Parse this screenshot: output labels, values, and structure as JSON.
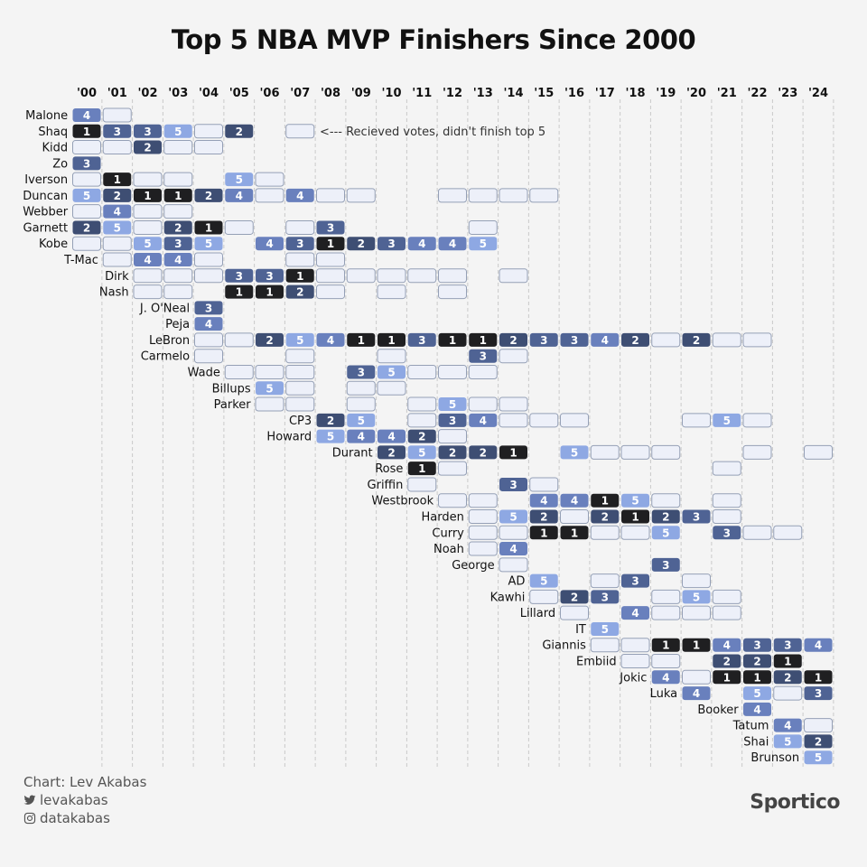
{
  "chart_data": {
    "type": "table",
    "title": "Top 5 NBA MVP Finishers Since 2000",
    "years": [
      "'00",
      "'01",
      "'02",
      "'03",
      "'04",
      "'05",
      "'06",
      "'07",
      "'08",
      "'09",
      "'10",
      "'11",
      "'12",
      "'13",
      "'14",
      "'15",
      "'16",
      "'17",
      "'18",
      "'19",
      "'20",
      "'21",
      "'22",
      "'23",
      "'24"
    ],
    "annotation": "<--- Recieved votes, didn't finish top 5",
    "colors": {
      "1": "#1f1f21",
      "2": "#3e4e73",
      "3": "#4f6394",
      "4": "#6980bd",
      "5": "#8ea8e3",
      "0": "#edf0f9",
      "stroke": "#95a0b6"
    },
    "players": [
      {
        "name": "Malone",
        "cells": [
          [
            0,
            4
          ],
          [
            1,
            0
          ]
        ]
      },
      {
        "name": "Shaq",
        "cells": [
          [
            0,
            1
          ],
          [
            1,
            3
          ],
          [
            2,
            3
          ],
          [
            3,
            5
          ],
          [
            4,
            0
          ],
          [
            5,
            2
          ],
          [
            7,
            0
          ]
        ]
      },
      {
        "name": "Kidd",
        "cells": [
          [
            0,
            0
          ],
          [
            1,
            0
          ],
          [
            2,
            2
          ],
          [
            3,
            0
          ],
          [
            4,
            0
          ]
        ]
      },
      {
        "name": "Zo",
        "cells": [
          [
            0,
            3
          ]
        ]
      },
      {
        "name": "Iverson",
        "cells": [
          [
            0,
            0
          ],
          [
            1,
            1
          ],
          [
            2,
            0
          ],
          [
            3,
            0
          ],
          [
            5,
            5
          ],
          [
            6,
            0
          ]
        ]
      },
      {
        "name": "Duncan",
        "cells": [
          [
            0,
            5
          ],
          [
            1,
            2
          ],
          [
            2,
            1
          ],
          [
            3,
            1
          ],
          [
            4,
            2
          ],
          [
            5,
            4
          ],
          [
            6,
            0
          ],
          [
            7,
            4
          ],
          [
            8,
            0
          ],
          [
            9,
            0
          ],
          [
            12,
            0
          ],
          [
            13,
            0
          ],
          [
            14,
            0
          ],
          [
            15,
            0
          ]
        ]
      },
      {
        "name": "Webber",
        "cells": [
          [
            0,
            0
          ],
          [
            1,
            4
          ],
          [
            2,
            0
          ],
          [
            3,
            0
          ]
        ]
      },
      {
        "name": "Garnett",
        "cells": [
          [
            0,
            2
          ],
          [
            1,
            5
          ],
          [
            2,
            0
          ],
          [
            3,
            2
          ],
          [
            4,
            1
          ],
          [
            5,
            0
          ],
          [
            7,
            0
          ],
          [
            8,
            3
          ],
          [
            13,
            0
          ]
        ]
      },
      {
        "name": "Kobe",
        "cells": [
          [
            0,
            0
          ],
          [
            1,
            0
          ],
          [
            2,
            5
          ],
          [
            3,
            3
          ],
          [
            4,
            5
          ],
          [
            6,
            4
          ],
          [
            7,
            3
          ],
          [
            8,
            1
          ],
          [
            9,
            2
          ],
          [
            10,
            3
          ],
          [
            11,
            4
          ],
          [
            12,
            4
          ],
          [
            13,
            5
          ]
        ]
      },
      {
        "name": "T-Mac",
        "cells": [
          [
            1,
            0
          ],
          [
            2,
            4
          ],
          [
            3,
            4
          ],
          [
            4,
            0
          ],
          [
            7,
            0
          ],
          [
            8,
            0
          ]
        ]
      },
      {
        "name": "Dirk",
        "cells": [
          [
            2,
            0
          ],
          [
            3,
            0
          ],
          [
            4,
            0
          ],
          [
            5,
            3
          ],
          [
            6,
            3
          ],
          [
            7,
            1
          ],
          [
            8,
            0
          ],
          [
            9,
            0
          ],
          [
            10,
            0
          ],
          [
            11,
            0
          ],
          [
            12,
            0
          ],
          [
            14,
            0
          ]
        ]
      },
      {
        "name": "Nash",
        "cells": [
          [
            2,
            0
          ],
          [
            3,
            0
          ],
          [
            5,
            1
          ],
          [
            6,
            1
          ],
          [
            7,
            2
          ],
          [
            8,
            0
          ],
          [
            10,
            0
          ],
          [
            12,
            0
          ]
        ]
      },
      {
        "name": "J. O'Neal",
        "cells": [
          [
            4,
            3
          ]
        ]
      },
      {
        "name": "Peja",
        "cells": [
          [
            4,
            4
          ]
        ]
      },
      {
        "name": "LeBron",
        "cells": [
          [
            4,
            0
          ],
          [
            5,
            0
          ],
          [
            6,
            2
          ],
          [
            7,
            5
          ],
          [
            8,
            4
          ],
          [
            9,
            1
          ],
          [
            10,
            1
          ],
          [
            11,
            3
          ],
          [
            12,
            1
          ],
          [
            13,
            1
          ],
          [
            14,
            2
          ],
          [
            15,
            3
          ],
          [
            16,
            3
          ],
          [
            17,
            4
          ],
          [
            18,
            2
          ],
          [
            19,
            0
          ],
          [
            20,
            2
          ],
          [
            21,
            0
          ],
          [
            22,
            0
          ]
        ]
      },
      {
        "name": "Carmelo",
        "cells": [
          [
            4,
            0
          ],
          [
            7,
            0
          ],
          [
            10,
            0
          ],
          [
            13,
            3
          ],
          [
            14,
            0
          ]
        ]
      },
      {
        "name": "Wade",
        "cells": [
          [
            5,
            0
          ],
          [
            6,
            0
          ],
          [
            7,
            0
          ],
          [
            9,
            3
          ],
          [
            10,
            5
          ],
          [
            11,
            0
          ],
          [
            12,
            0
          ],
          [
            13,
            0
          ]
        ]
      },
      {
        "name": "Billups",
        "cells": [
          [
            6,
            5
          ],
          [
            7,
            0
          ],
          [
            9,
            0
          ],
          [
            10,
            0
          ]
        ]
      },
      {
        "name": "Parker",
        "cells": [
          [
            6,
            0
          ],
          [
            7,
            0
          ],
          [
            9,
            0
          ],
          [
            11,
            0
          ],
          [
            12,
            5
          ],
          [
            13,
            0
          ],
          [
            14,
            0
          ]
        ]
      },
      {
        "name": "CP3",
        "cells": [
          [
            8,
            2
          ],
          [
            9,
            5
          ],
          [
            11,
            0
          ],
          [
            12,
            3
          ],
          [
            13,
            4
          ],
          [
            14,
            0
          ],
          [
            15,
            0
          ],
          [
            16,
            0
          ],
          [
            20,
            0
          ],
          [
            21,
            5
          ],
          [
            22,
            0
          ]
        ]
      },
      {
        "name": "Howard",
        "cells": [
          [
            8,
            5
          ],
          [
            9,
            4
          ],
          [
            10,
            4
          ],
          [
            11,
            2
          ],
          [
            12,
            0
          ]
        ]
      },
      {
        "name": "Durant",
        "cells": [
          [
            10,
            2
          ],
          [
            11,
            5
          ],
          [
            12,
            2
          ],
          [
            13,
            2
          ],
          [
            14,
            1
          ],
          [
            16,
            5
          ],
          [
            17,
            0
          ],
          [
            18,
            0
          ],
          [
            19,
            0
          ],
          [
            22,
            0
          ],
          [
            24,
            0
          ]
        ]
      },
      {
        "name": "Rose",
        "cells": [
          [
            11,
            1
          ],
          [
            12,
            0
          ],
          [
            21,
            0
          ]
        ]
      },
      {
        "name": "Griffin",
        "cells": [
          [
            11,
            0
          ],
          [
            14,
            3
          ],
          [
            15,
            0
          ]
        ]
      },
      {
        "name": "Westbrook",
        "cells": [
          [
            12,
            0
          ],
          [
            13,
            0
          ],
          [
            15,
            4
          ],
          [
            16,
            4
          ],
          [
            17,
            1
          ],
          [
            18,
            5
          ],
          [
            19,
            0
          ],
          [
            21,
            0
          ]
        ]
      },
      {
        "name": "Harden",
        "cells": [
          [
            13,
            0
          ],
          [
            14,
            5
          ],
          [
            15,
            2
          ],
          [
            16,
            0
          ],
          [
            17,
            2
          ],
          [
            18,
            1
          ],
          [
            19,
            2
          ],
          [
            20,
            3
          ],
          [
            21,
            0
          ]
        ]
      },
      {
        "name": "Curry",
        "cells": [
          [
            13,
            0
          ],
          [
            14,
            0
          ],
          [
            15,
            1
          ],
          [
            16,
            1
          ],
          [
            17,
            0
          ],
          [
            18,
            0
          ],
          [
            19,
            5
          ],
          [
            21,
            3
          ],
          [
            22,
            0
          ],
          [
            23,
            0
          ]
        ]
      },
      {
        "name": "Noah",
        "cells": [
          [
            13,
            0
          ],
          [
            14,
            4
          ]
        ]
      },
      {
        "name": "George",
        "cells": [
          [
            14,
            0
          ],
          [
            19,
            3
          ]
        ]
      },
      {
        "name": "AD",
        "cells": [
          [
            15,
            5
          ],
          [
            17,
            0
          ],
          [
            18,
            3
          ],
          [
            20,
            0
          ]
        ]
      },
      {
        "name": "Kawhi",
        "cells": [
          [
            15,
            0
          ],
          [
            16,
            2
          ],
          [
            17,
            3
          ],
          [
            19,
            0
          ],
          [
            20,
            5
          ],
          [
            21,
            0
          ]
        ]
      },
      {
        "name": "Lillard",
        "cells": [
          [
            16,
            0
          ],
          [
            18,
            4
          ],
          [
            19,
            0
          ],
          [
            20,
            0
          ],
          [
            21,
            0
          ]
        ]
      },
      {
        "name": "IT",
        "cells": [
          [
            17,
            5
          ]
        ]
      },
      {
        "name": "Giannis",
        "cells": [
          [
            17,
            0
          ],
          [
            18,
            0
          ],
          [
            19,
            1
          ],
          [
            20,
            1
          ],
          [
            21,
            4
          ],
          [
            22,
            3
          ],
          [
            23,
            3
          ],
          [
            24,
            4
          ]
        ]
      },
      {
        "name": "Embiid",
        "cells": [
          [
            18,
            0
          ],
          [
            19,
            0
          ],
          [
            21,
            2
          ],
          [
            22,
            2
          ],
          [
            23,
            1
          ]
        ]
      },
      {
        "name": "Jokic",
        "cells": [
          [
            19,
            4
          ],
          [
            20,
            0
          ],
          [
            21,
            1
          ],
          [
            22,
            1
          ],
          [
            23,
            2
          ],
          [
            24,
            1
          ]
        ]
      },
      {
        "name": "Luka",
        "cells": [
          [
            20,
            4
          ],
          [
            22,
            5
          ],
          [
            23,
            0
          ],
          [
            24,
            3
          ]
        ]
      },
      {
        "name": "Booker",
        "cells": [
          [
            22,
            4
          ]
        ]
      },
      {
        "name": "Tatum",
        "cells": [
          [
            23,
            4
          ],
          [
            24,
            0
          ]
        ]
      },
      {
        "name": "Shai",
        "cells": [
          [
            23,
            5
          ],
          [
            24,
            2
          ]
        ]
      },
      {
        "name": "Brunson",
        "cells": [
          [
            24,
            5
          ]
        ]
      }
    ]
  },
  "footer": {
    "credit": "Chart: Lev Akabas",
    "twitter": "levakabas",
    "instagram": "datakabas",
    "twitter_icon": "twitter-icon",
    "instagram_icon": "instagram-icon"
  },
  "brand": "Sportico"
}
